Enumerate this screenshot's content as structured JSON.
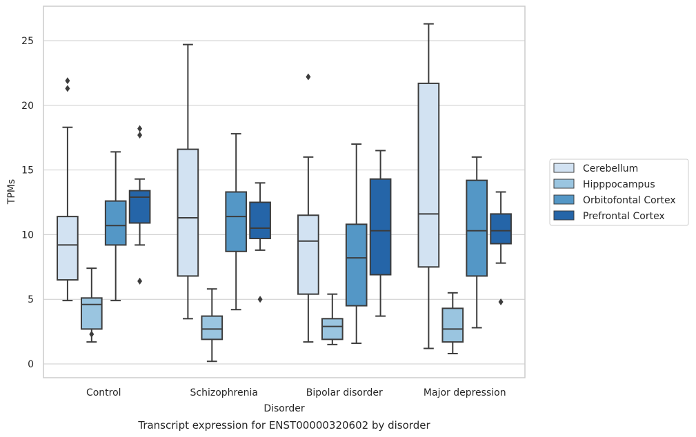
{
  "chart_data": {
    "type": "box",
    "title": "",
    "caption": "Transcript expression for ENST00000320602 by disorder",
    "xlabel": "Disorder",
    "ylabel": "TPMs",
    "ylim": [
      -1,
      27.5
    ],
    "yticks": [
      0,
      5,
      10,
      15,
      20,
      25
    ],
    "grid": "horizontal",
    "legend_placement": "right",
    "categories": [
      "Control",
      "Schizophrenia",
      "Bipolar disorder",
      "Major depression"
    ],
    "series": [
      {
        "name": "Cerebellum",
        "color": "#d2e2f2",
        "boxes": [
          {
            "whisker_low": 4.9,
            "q1": 6.5,
            "median": 9.2,
            "q3": 11.4,
            "whisker_high": 18.3,
            "outliers": [
              21.3,
              21.9
            ]
          },
          {
            "whisker_low": 3.5,
            "q1": 6.8,
            "median": 11.3,
            "q3": 16.6,
            "whisker_high": 24.7,
            "outliers": []
          },
          {
            "whisker_low": 1.7,
            "q1": 5.4,
            "median": 9.5,
            "q3": 11.5,
            "whisker_high": 16.0,
            "outliers": [
              22.2
            ]
          },
          {
            "whisker_low": 1.2,
            "q1": 7.5,
            "median": 11.6,
            "q3": 21.7,
            "whisker_high": 26.3,
            "outliers": []
          }
        ]
      },
      {
        "name": "Hipppocampus",
        "color": "#9ac5e0",
        "boxes": [
          {
            "whisker_low": 1.7,
            "q1": 2.7,
            "median": 4.6,
            "q3": 5.1,
            "whisker_high": 7.4,
            "outliers": [
              2.3
            ]
          },
          {
            "whisker_low": 0.2,
            "q1": 1.9,
            "median": 2.7,
            "q3": 3.7,
            "whisker_high": 5.8,
            "outliers": []
          },
          {
            "whisker_low": 1.5,
            "q1": 1.9,
            "median": 2.9,
            "q3": 3.5,
            "whisker_high": 5.4,
            "outliers": []
          },
          {
            "whisker_low": 0.8,
            "q1": 1.7,
            "median": 2.7,
            "q3": 4.3,
            "whisker_high": 5.5,
            "outliers": []
          }
        ]
      },
      {
        "name": "Orbitofontal Cortex",
        "color": "#5497c6",
        "boxes": [
          {
            "whisker_low": 4.9,
            "q1": 9.2,
            "median": 10.7,
            "q3": 12.6,
            "whisker_high": 16.4,
            "outliers": []
          },
          {
            "whisker_low": 4.2,
            "q1": 8.7,
            "median": 11.4,
            "q3": 13.3,
            "whisker_high": 17.8,
            "outliers": []
          },
          {
            "whisker_low": 1.6,
            "q1": 4.5,
            "median": 8.2,
            "q3": 10.8,
            "whisker_high": 17.0,
            "outliers": []
          },
          {
            "whisker_low": 2.8,
            "q1": 6.8,
            "median": 10.3,
            "q3": 14.2,
            "whisker_high": 16.0,
            "outliers": []
          }
        ]
      },
      {
        "name": "Prefrontal Cortex",
        "color": "#2565a8",
        "boxes": [
          {
            "whisker_low": 9.2,
            "q1": 10.9,
            "median": 12.9,
            "q3": 13.4,
            "whisker_high": 14.3,
            "outliers": [
              6.4,
              17.7,
              18.2
            ]
          },
          {
            "whisker_low": 8.8,
            "q1": 9.7,
            "median": 10.5,
            "q3": 12.5,
            "whisker_high": 14.0,
            "outliers": [
              5.0
            ]
          },
          {
            "whisker_low": 3.7,
            "q1": 6.9,
            "median": 10.3,
            "q3": 14.3,
            "whisker_high": 16.5,
            "outliers": []
          },
          {
            "whisker_low": 7.8,
            "q1": 9.3,
            "median": 10.3,
            "q3": 11.6,
            "whisker_high": 13.3,
            "outliers": [
              4.8
            ]
          }
        ]
      }
    ]
  }
}
